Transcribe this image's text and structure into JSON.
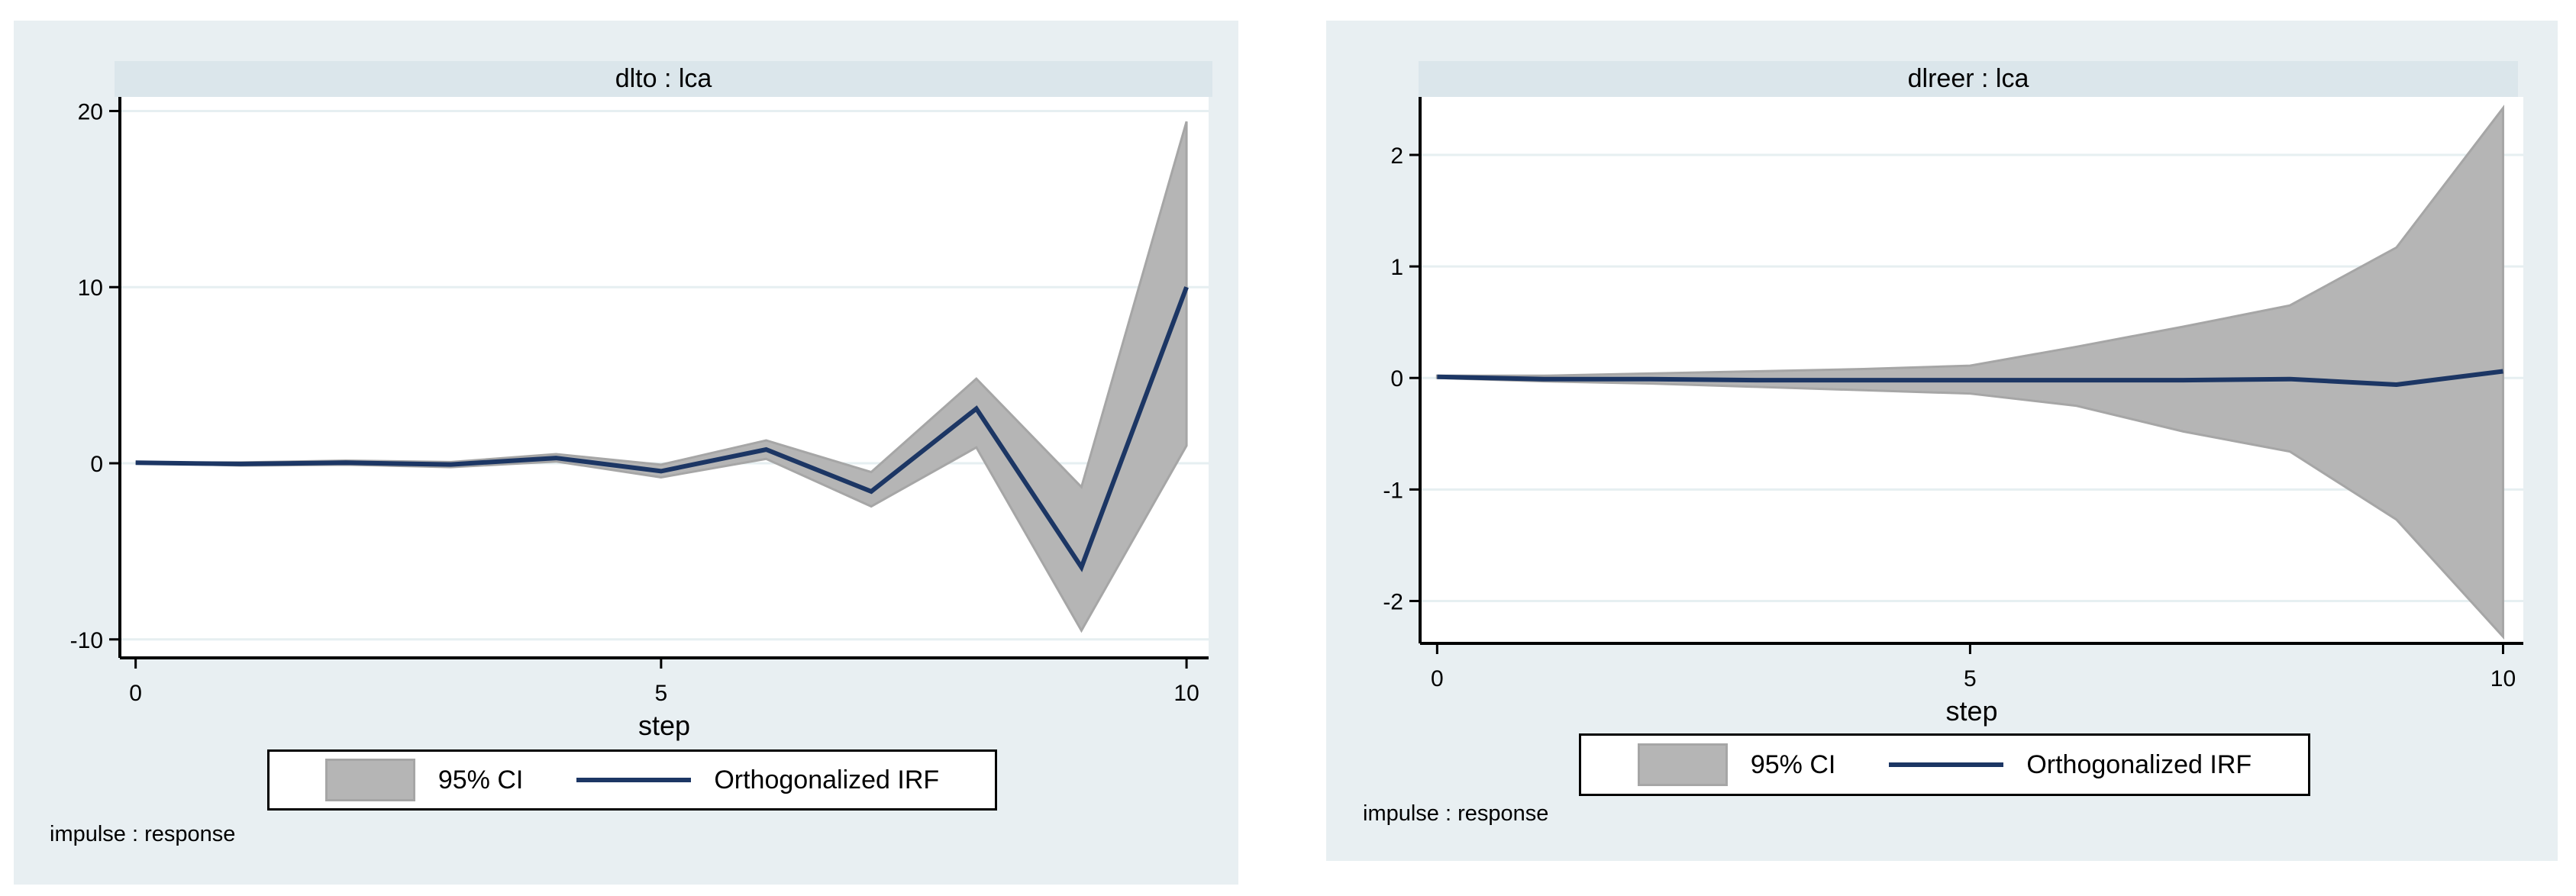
{
  "colors": {
    "panel_bg": "#e8eff2",
    "titlebar_bg": "#dbe6eb",
    "plot_bg": "#ffffff",
    "gridline": "#e6eff1",
    "axis": "#000000",
    "ci_band": "#b5b5b5",
    "ci_band_edge": "#a6a6a6",
    "irf_line": "#1c3664"
  },
  "chart_data": [
    {
      "type": "area",
      "title": "dlto : lca",
      "xlabel": "step",
      "note": "impulse : response",
      "x": [
        0,
        1,
        2,
        3,
        4,
        5,
        6,
        7,
        8,
        9,
        10
      ],
      "series": [
        {
          "name": "95% CI",
          "type": "band",
          "lower": [
            0.03,
            -0.13,
            -0.08,
            -0.22,
            0.1,
            -0.8,
            0.25,
            -2.45,
            0.9,
            -9.5,
            1.0
          ],
          "upper": [
            0.03,
            0.05,
            0.15,
            0.07,
            0.52,
            -0.08,
            1.3,
            -0.5,
            4.8,
            -1.35,
            19.4
          ]
        },
        {
          "name": "Orthogonalized IRF",
          "type": "line",
          "values": [
            0.03,
            -0.04,
            0.03,
            -0.07,
            0.3,
            -0.45,
            0.78,
            -1.6,
            3.1,
            -5.9,
            10.0
          ]
        }
      ],
      "x_ticks": [
        0,
        5,
        10
      ],
      "y_ticks": [
        20,
        10,
        0,
        -10
      ],
      "xlim": [
        -0.15,
        10.21
      ],
      "ylim": [
        -11.05,
        20.8
      ],
      "grid": "horizontal",
      "legend_position": "bottom"
    },
    {
      "type": "area",
      "title": "dlreer : lca",
      "xlabel": "step",
      "note": "impulse : response",
      "x": [
        0,
        1,
        2,
        3,
        4,
        5,
        6,
        7,
        8,
        9,
        10
      ],
      "series": [
        {
          "name": "95% CI",
          "type": "band",
          "lower": [
            0.0,
            -0.03,
            -0.05,
            -0.08,
            -0.11,
            -0.14,
            -0.25,
            -0.48,
            -0.66,
            -1.27,
            -2.32
          ],
          "upper": [
            0.02,
            0.02,
            0.04,
            0.06,
            0.08,
            0.11,
            0.28,
            0.46,
            0.65,
            1.17,
            2.42
          ]
        },
        {
          "name": "Orthogonalized IRF",
          "type": "line",
          "values": [
            0.01,
            -0.01,
            -0.01,
            -0.02,
            -0.02,
            -0.02,
            -0.02,
            -0.02,
            -0.01,
            -0.06,
            0.06
          ]
        }
      ],
      "x_ticks": [
        0,
        5,
        10
      ],
      "y_ticks": [
        2,
        1,
        0,
        -1,
        -2
      ],
      "xlim": [
        -0.16,
        10.19
      ],
      "ylim": [
        -2.38,
        2.52
      ],
      "grid": "horizontal",
      "legend_position": "bottom"
    }
  ]
}
